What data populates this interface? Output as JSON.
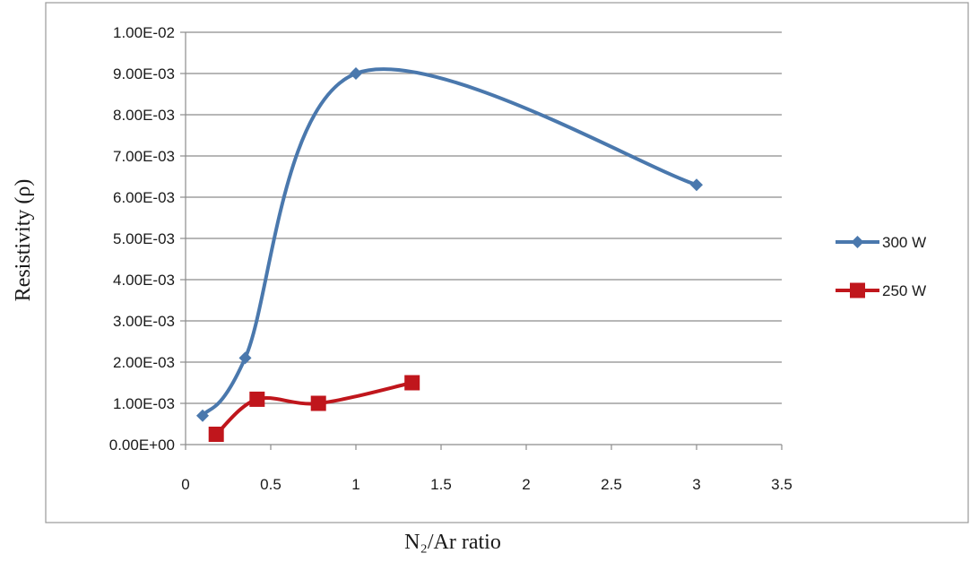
{
  "chart_data": {
    "type": "scatter",
    "xlabel": "N₂/Ar ratio",
    "ylabel": "Resistivity (ρ)",
    "xlim": [
      0,
      3.5
    ],
    "ylim": [
      0,
      0.01
    ],
    "x_ticks": [
      "0",
      "0.5",
      "1",
      "1.5",
      "2",
      "2.5",
      "3",
      "3.5"
    ],
    "x_tick_values": [
      0,
      0.5,
      1,
      1.5,
      2,
      2.5,
      3,
      3.5
    ],
    "y_ticks": [
      "0.00E+00",
      "1.00E-03",
      "2.00E-03",
      "3.00E-03",
      "4.00E-03",
      "5.00E-03",
      "6.00E-03",
      "7.00E-03",
      "8.00E-03",
      "9.00E-03",
      "1.00E-02"
    ],
    "y_tick_values": [
      0,
      0.001,
      0.002,
      0.003,
      0.004,
      0.005,
      0.006,
      0.007,
      0.008,
      0.009,
      0.01
    ],
    "grid": "horizontal",
    "legend_position": "right",
    "line_style": "smoothed",
    "series": [
      {
        "name": "300 W",
        "color": "#4a78ad",
        "marker": "diamond",
        "x": [
          0.1,
          0.35,
          1,
          3
        ],
        "y": [
          0.0007,
          0.0021,
          0.009,
          0.0063
        ]
      },
      {
        "name": "250 W",
        "color": "#c0161c",
        "marker": "square",
        "x": [
          0.18,
          0.42,
          0.78,
          1.33
        ],
        "y": [
          0.00025,
          0.0011,
          0.001,
          0.0015
        ]
      }
    ]
  }
}
